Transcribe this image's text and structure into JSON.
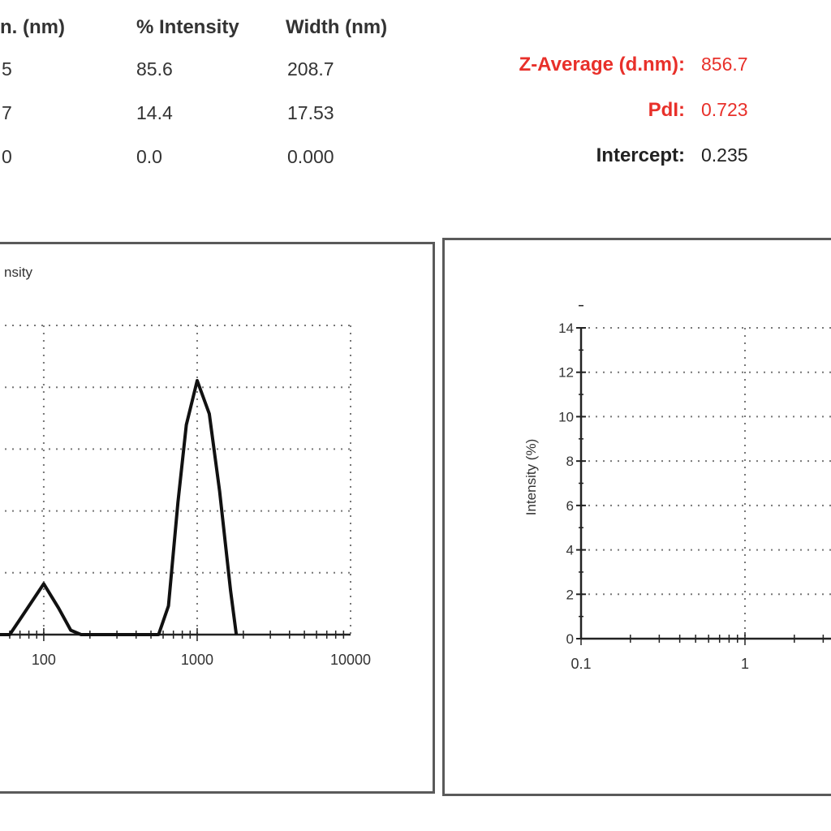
{
  "peak_table": {
    "headers": [
      "n. (nm)",
      "% Intensity",
      "Width (nm)"
    ],
    "rows": [
      {
        "size": "5",
        "intensity": "85.6",
        "width": "208.7"
      },
      {
        "size": "7",
        "intensity": "14.4",
        "width": "17.53"
      },
      {
        "size": "0",
        "intensity": "0.0",
        "width": "0.000"
      }
    ]
  },
  "metrics": [
    {
      "label": "Z-Average (d.nm):",
      "value": "856.7",
      "color": "#e8302a"
    },
    {
      "label": "PdI:",
      "value": "0.723",
      "color": "#e8302a"
    },
    {
      "label": "Intercept:",
      "value": "0.235",
      "color": "#222222"
    }
  ],
  "chart_data": [
    {
      "type": "line",
      "title": "nsity",
      "xlabel": "",
      "ylabel": "",
      "x_scale": "log",
      "x_ticks": [
        "100",
        "1000",
        "10000"
      ],
      "xlim": [
        50,
        10000
      ],
      "ylim": [
        0,
        14
      ],
      "grid": true,
      "series": [
        {
          "x": [
            50,
            60,
            75,
            100,
            125,
            150,
            175,
            500,
            560,
            650,
            750,
            850,
            1000,
            1200,
            1400,
            1650,
            1800
          ],
          "y": [
            0,
            0,
            1.0,
            2.3,
            1.2,
            0.2,
            0,
            0,
            0,
            1.3,
            6.0,
            9.5,
            11.5,
            10.0,
            6.5,
            2.0,
            0
          ]
        }
      ]
    },
    {
      "type": "line",
      "title": "",
      "xlabel": "",
      "ylabel": "Intensity (%)",
      "x_scale": "log",
      "x_ticks": [
        "0.1",
        "1"
      ],
      "y_ticks": [
        "0",
        "2",
        "4",
        "6",
        "8",
        "10",
        "12",
        "14"
      ],
      "xlim": [
        0.1,
        10
      ],
      "ylim": [
        0,
        14
      ],
      "grid": true,
      "series": []
    }
  ]
}
